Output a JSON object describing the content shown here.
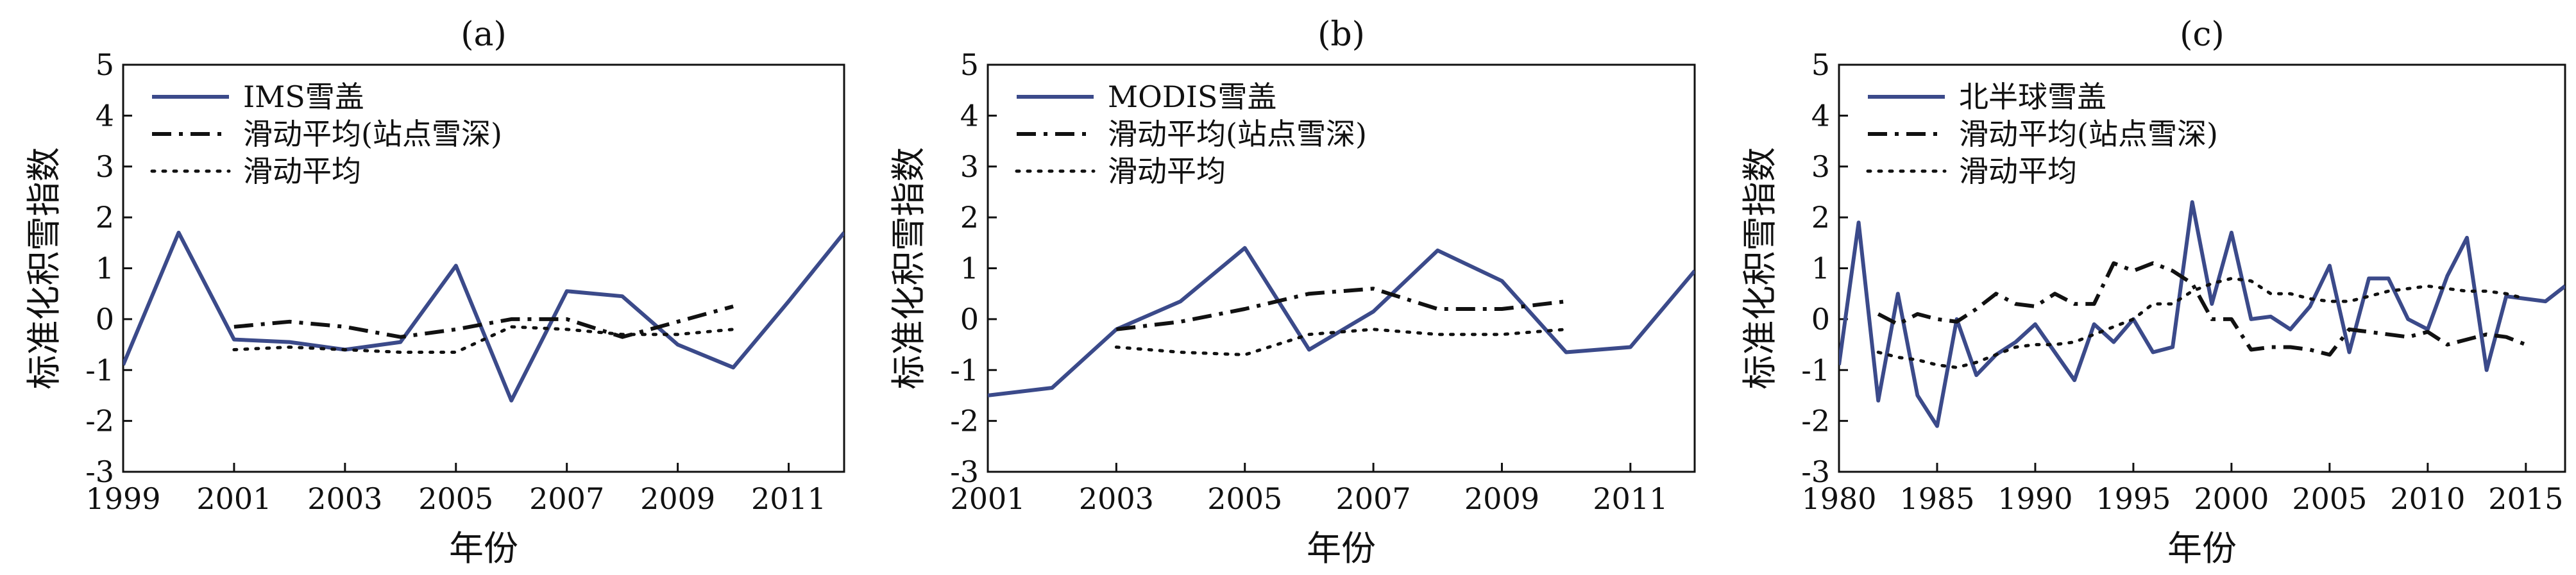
{
  "chart_data": [
    {
      "type": "line",
      "title": "(a)",
      "xlabel": "年份",
      "ylabel": "标准化积雪指数",
      "xlim": [
        1999,
        2012
      ],
      "ylim": [
        -3,
        5
      ],
      "xticks": [
        "1999",
        "2001",
        "2003",
        "2005",
        "2007",
        "2009",
        "2011"
      ],
      "yticks": [
        "-3",
        "-2",
        "-1",
        "0",
        "1",
        "2",
        "3",
        "4",
        "5"
      ],
      "legend_position": "top-left",
      "series": [
        {
          "name": "IMS雪盖",
          "style": "solid",
          "color": "#3b4a8a",
          "x": [
            1999,
            2000,
            2001,
            2002,
            2003,
            2004,
            2005,
            2006,
            2007,
            2008,
            2009,
            2010,
            2011,
            2012
          ],
          "y": [
            -0.9,
            1.7,
            -0.4,
            -0.45,
            -0.6,
            -0.45,
            1.05,
            -1.6,
            0.55,
            0.45,
            -0.5,
            -0.95,
            0.35,
            1.7
          ]
        },
        {
          "name": "滑动平均(站点雪深)",
          "style": "dashdot",
          "color": "#111111",
          "x": [
            2001,
            2002,
            2003,
            2004,
            2005,
            2006,
            2007,
            2008,
            2009,
            2010
          ],
          "y": [
            -0.15,
            -0.05,
            -0.15,
            -0.35,
            -0.2,
            0.0,
            0.0,
            -0.35,
            -0.05,
            0.25
          ]
        },
        {
          "name": "滑动平均",
          "style": "dotted",
          "color": "#111111",
          "x": [
            2001,
            2002,
            2003,
            2004,
            2005,
            2006,
            2007,
            2008,
            2009,
            2010
          ],
          "y": [
            -0.6,
            -0.55,
            -0.6,
            -0.65,
            -0.65,
            -0.15,
            -0.2,
            -0.3,
            -0.3,
            -0.2
          ]
        }
      ]
    },
    {
      "type": "line",
      "title": "(b)",
      "xlabel": "年份",
      "ylabel": "标准化积雪指数",
      "xlim": [
        2001,
        2012
      ],
      "ylim": [
        -3,
        5
      ],
      "xticks": [
        "2001",
        "2003",
        "2005",
        "2007",
        "2009",
        "2011"
      ],
      "yticks": [
        "-3",
        "-2",
        "-1",
        "0",
        "1",
        "2",
        "3",
        "4",
        "5"
      ],
      "legend_position": "top-left",
      "series": [
        {
          "name": "MODIS雪盖",
          "style": "solid",
          "color": "#3b4a8a",
          "x": [
            2001,
            2002,
            2003,
            2004,
            2005,
            2006,
            2007,
            2008,
            2009,
            2010,
            2011,
            2012
          ],
          "y": [
            -1.5,
            -1.35,
            -0.2,
            0.35,
            1.4,
            -0.6,
            0.15,
            1.35,
            0.75,
            -0.65,
            -0.55,
            0.95
          ]
        },
        {
          "name": "滑动平均(站点雪深)",
          "style": "dashdot",
          "color": "#111111",
          "x": [
            2003,
            2004,
            2005,
            2006,
            2007,
            2008,
            2009,
            2010
          ],
          "y": [
            -0.2,
            -0.05,
            0.2,
            0.5,
            0.6,
            0.2,
            0.2,
            0.35
          ]
        },
        {
          "name": "滑动平均",
          "style": "dotted",
          "color": "#111111",
          "x": [
            2003,
            2004,
            2005,
            2006,
            2007,
            2008,
            2009,
            2010
          ],
          "y": [
            -0.55,
            -0.65,
            -0.7,
            -0.3,
            -0.2,
            -0.3,
            -0.3,
            -0.2
          ]
        }
      ]
    },
    {
      "type": "line",
      "title": "(c)",
      "xlabel": "年份",
      "ylabel": "标准化积雪指数",
      "xlim": [
        1980,
        2017
      ],
      "ylim": [
        -3,
        5
      ],
      "xticks": [
        "1980",
        "1985",
        "1990",
        "1995",
        "2000",
        "2005",
        "2010",
        "2015"
      ],
      "yticks": [
        "-3",
        "-2",
        "-1",
        "0",
        "1",
        "2",
        "3",
        "4",
        "5"
      ],
      "legend_position": "top-left",
      "series": [
        {
          "name": "北半球雪盖",
          "style": "solid",
          "color": "#3b4a8a",
          "x": [
            1980,
            1981,
            1982,
            1983,
            1984,
            1985,
            1986,
            1987,
            1988,
            1989,
            1990,
            1991,
            1992,
            1993,
            1994,
            1995,
            1996,
            1997,
            1998,
            1999,
            2000,
            2001,
            2002,
            2003,
            2004,
            2005,
            2006,
            2007,
            2008,
            2009,
            2010,
            2011,
            2012,
            2013,
            2014,
            2015,
            2016,
            2017
          ],
          "y": [
            -0.9,
            1.9,
            -1.6,
            0.5,
            -1.5,
            -2.1,
            0.0,
            -1.1,
            -0.7,
            -0.45,
            -0.1,
            -0.65,
            -1.2,
            -0.1,
            -0.45,
            0.0,
            -0.65,
            -0.55,
            2.3,
            0.3,
            1.7,
            0.0,
            0.05,
            -0.2,
            0.25,
            1.05,
            -0.65,
            0.8,
            0.8,
            0.0,
            -0.2,
            0.85,
            1.6,
            -1.0,
            0.45,
            0.4,
            0.35,
            0.65
          ]
        },
        {
          "name": "滑动平均(站点雪深)",
          "style": "dashdot",
          "color": "#111111",
          "x": [
            1982,
            1983,
            1984,
            1985,
            1986,
            1987,
            1988,
            1989,
            1990,
            1991,
            1992,
            1993,
            1994,
            1995,
            1996,
            1997,
            1998,
            1999,
            2000,
            2001,
            2002,
            2003,
            2004,
            2005,
            2006,
            2007,
            2008,
            2009,
            2010,
            2011,
            2012,
            2013,
            2014,
            2015
          ],
          "y": [
            0.1,
            -0.1,
            0.1,
            0.0,
            -0.05,
            0.2,
            0.5,
            0.3,
            0.25,
            0.5,
            0.3,
            0.3,
            1.1,
            0.95,
            1.1,
            0.95,
            0.7,
            0.0,
            0.0,
            -0.6,
            -0.55,
            -0.55,
            -0.6,
            -0.7,
            -0.2,
            -0.25,
            -0.3,
            -0.35,
            -0.25,
            -0.5,
            -0.4,
            -0.3,
            -0.35,
            -0.5
          ]
        },
        {
          "name": "滑动平均",
          "style": "dotted",
          "color": "#111111",
          "x": [
            1982,
            1983,
            1984,
            1985,
            1986,
            1987,
            1988,
            1989,
            1990,
            1991,
            1992,
            1993,
            1994,
            1995,
            1996,
            1997,
            1998,
            1999,
            2000,
            2001,
            2002,
            2003,
            2004,
            2005,
            2006,
            2007,
            2008,
            2009,
            2010,
            2011,
            2012,
            2013,
            2014,
            2015
          ],
          "y": [
            -0.65,
            -0.75,
            -0.8,
            -0.9,
            -0.95,
            -0.85,
            -0.7,
            -0.55,
            -0.5,
            -0.5,
            -0.45,
            -0.3,
            -0.15,
            0.0,
            0.3,
            0.3,
            0.55,
            0.7,
            0.8,
            0.75,
            0.5,
            0.5,
            0.4,
            0.35,
            0.35,
            0.45,
            0.55,
            0.6,
            0.65,
            0.6,
            0.55,
            0.55,
            0.5,
            0.4
          ]
        }
      ]
    }
  ]
}
